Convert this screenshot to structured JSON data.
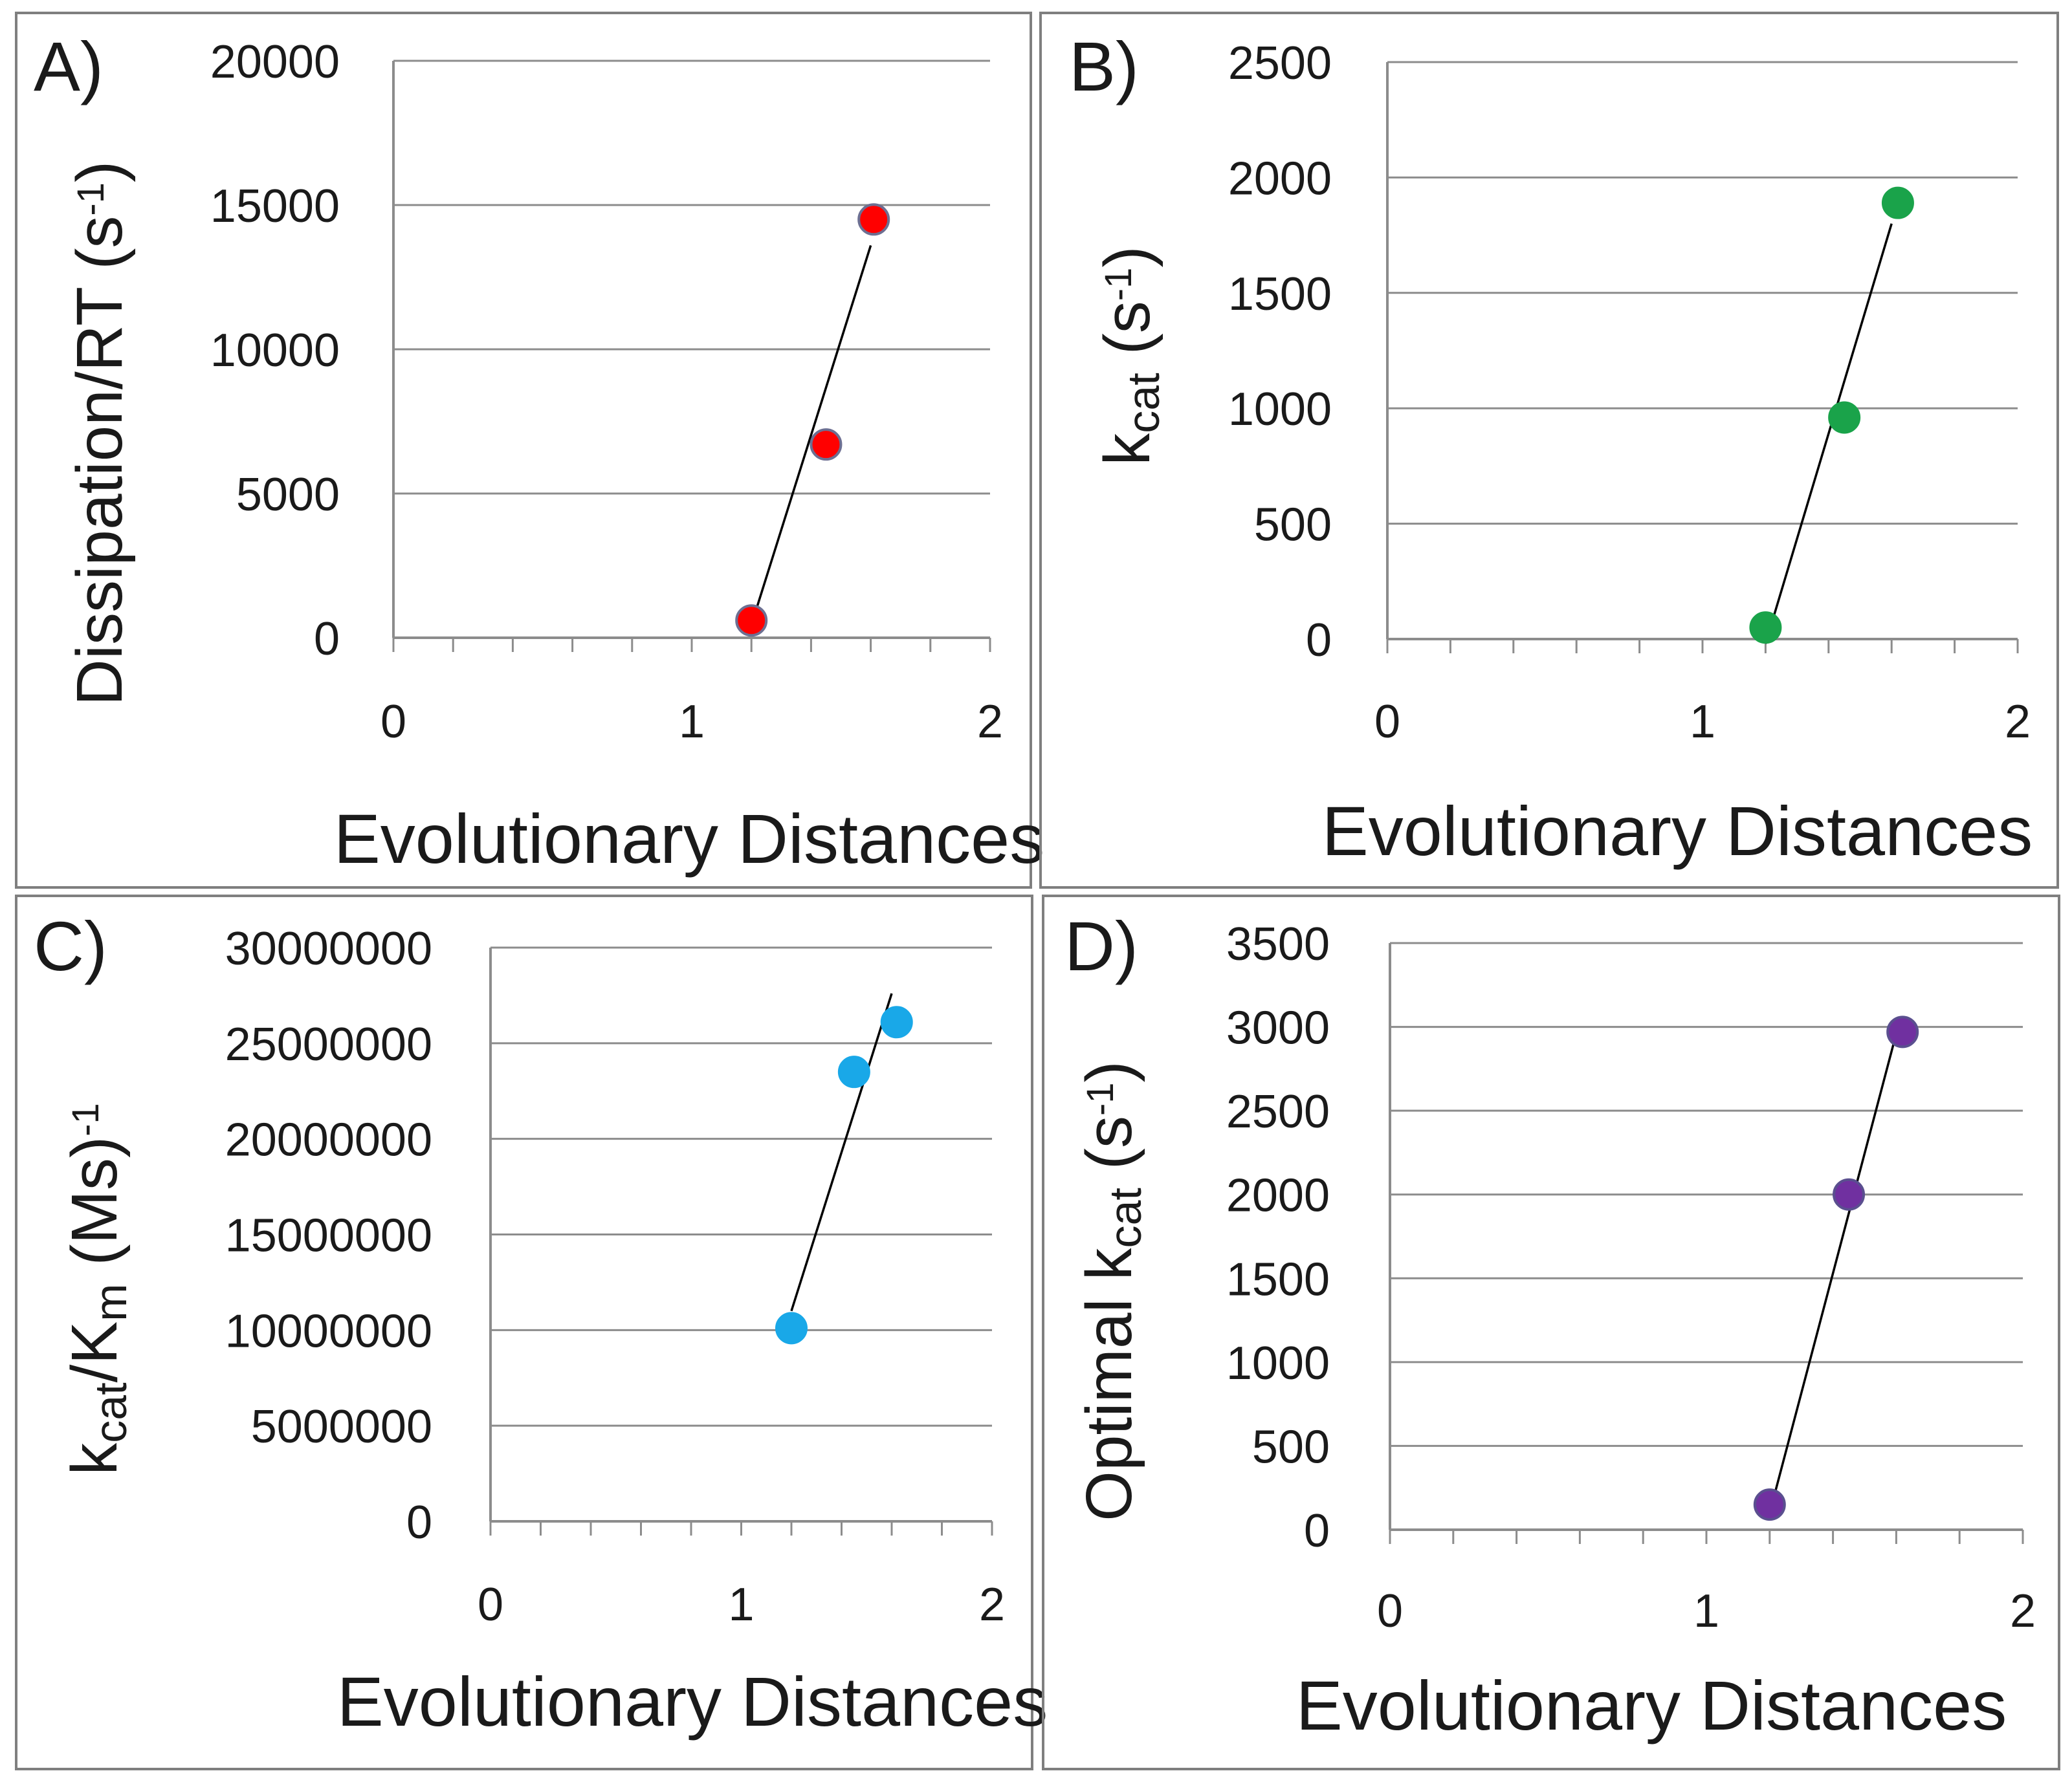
{
  "chart_data": [
    {
      "type": "scatter",
      "panel_label": "A)",
      "title": "",
      "xlabel": "Evolutionary  Distances",
      "ylabel_parts": [
        {
          "text": "Dissipation/RT (s",
          "style": "normal"
        },
        {
          "text": "-1",
          "style": "sup"
        },
        {
          "text": ")",
          "style": "normal"
        }
      ],
      "xlim": [
        0,
        2
      ],
      "ylim": [
        0,
        20000
      ],
      "xticks": [
        0,
        1,
        2
      ],
      "yticks": [
        0,
        5000,
        10000,
        15000,
        20000
      ],
      "x_minor_step": 0.2,
      "grid": true,
      "marker_color": "#ff0000",
      "marker_edge": "#6d6f92",
      "series": [
        {
          "name": "Dissipation/RT",
          "x": [
            1.2,
            1.45,
            1.61
          ],
          "y": [
            600,
            6700,
            14500
          ]
        }
      ],
      "trendline": {
        "x": [
          1.2,
          1.6
        ],
        "y": [
          450,
          13600
        ]
      }
    },
    {
      "type": "scatter",
      "panel_label": "B)",
      "title": "",
      "xlabel": "Evolutionary  Distances",
      "ylabel_parts": [
        {
          "text": "k",
          "style": "normal"
        },
        {
          "text": "cat",
          "style": "sub"
        },
        {
          "text": " (s",
          "style": "normal"
        },
        {
          "text": "-1",
          "style": "sup"
        },
        {
          "text": ")",
          "style": "normal"
        }
      ],
      "xlim": [
        0,
        2
      ],
      "ylim": [
        0,
        2500
      ],
      "xticks": [
        0,
        1,
        2
      ],
      "yticks": [
        0,
        500,
        1000,
        1500,
        2000,
        2500
      ],
      "x_minor_step": 0.2,
      "grid": true,
      "marker_color": "#1aa34a",
      "marker_edge": "#1aa34a",
      "series": [
        {
          "name": "kcat",
          "x": [
            1.2,
            1.45,
            1.62
          ],
          "y": [
            50,
            960,
            1890
          ]
        }
      ],
      "trendline": {
        "x": [
          1.2,
          1.6
        ],
        "y": [
          -20,
          1800
        ]
      }
    },
    {
      "type": "scatter",
      "panel_label": "C)",
      "title": "",
      "xlabel": "Evolutionary  Distances",
      "ylabel_parts": [
        {
          "text": "k",
          "style": "normal"
        },
        {
          "text": "cat",
          "style": "sub"
        },
        {
          "text": "/K",
          "style": "normal"
        },
        {
          "text": "m",
          "style": "sub"
        },
        {
          "text": "  (Ms)",
          "style": "normal"
        },
        {
          "text": "-1",
          "style": "sup"
        }
      ],
      "xlim": [
        0,
        2
      ],
      "ylim": [
        0,
        30000000
      ],
      "xticks": [
        0,
        1,
        2
      ],
      "yticks": [
        0,
        5000000,
        10000000,
        15000000,
        20000000,
        25000000,
        30000000
      ],
      "x_minor_step": 0.2,
      "grid": true,
      "marker_color": "#19a8e8",
      "marker_edge": "#19a8e8",
      "series": [
        {
          "name": "kcat/Km",
          "x": [
            1.2,
            1.45,
            1.62
          ],
          "y": [
            10100000,
            23500000,
            26100000
          ]
        }
      ],
      "trendline": {
        "x": [
          1.2,
          1.6
        ],
        "y": [
          11000000,
          27600000
        ]
      }
    },
    {
      "type": "scatter",
      "panel_label": "D)",
      "title": "",
      "xlabel": "Evolutionary  Distances",
      "ylabel_parts": [
        {
          "text": "Optimal  k",
          "style": "normal"
        },
        {
          "text": "cat",
          "style": "sub"
        },
        {
          "text": " (s",
          "style": "normal"
        },
        {
          "text": "-1",
          "style": "sup"
        },
        {
          "text": ")",
          "style": "normal"
        }
      ],
      "xlim": [
        0,
        2
      ],
      "ylim": [
        0,
        3500
      ],
      "xticks": [
        0,
        1,
        2
      ],
      "yticks": [
        0,
        500,
        1000,
        1500,
        2000,
        2500,
        3000,
        3500
      ],
      "x_minor_step": 0.2,
      "grid": true,
      "marker_color": "#7030a0",
      "marker_edge": "#5a4f8f",
      "series": [
        {
          "name": "Optimal kcat",
          "x": [
            1.2,
            1.45,
            1.62
          ],
          "y": [
            150,
            2000,
            2970
          ]
        }
      ],
      "trendline": {
        "x": [
          1.2,
          1.6
        ],
        "y": [
          100,
          2960
        ]
      }
    }
  ]
}
